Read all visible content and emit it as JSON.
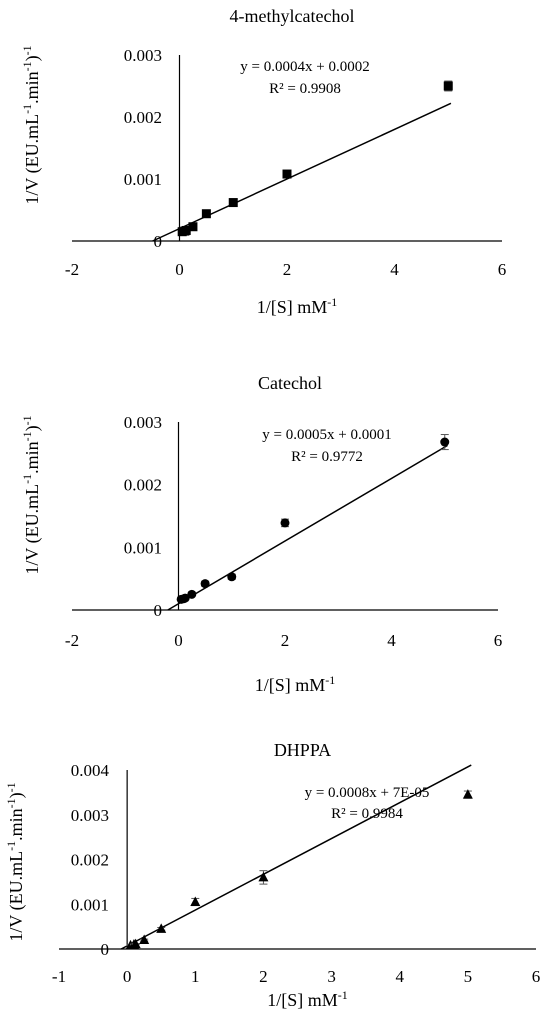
{
  "chart_data": [
    {
      "type": "scatter",
      "title": "4-methylcatechol",
      "xlabel": "1/[S] mM",
      "xlabel_sup": "-1",
      "ylabel": "1/V (EU.mL-1.min-1)-1",
      "xlim": [
        -2,
        6
      ],
      "ylim": [
        0,
        0.003
      ],
      "xticks": [
        "-2",
        "0",
        "2",
        "4",
        "6"
      ],
      "yticks": [
        "0",
        "0.001",
        "0.002",
        "0.003"
      ],
      "marker": "square",
      "trendline": {
        "slope": 0.0004,
        "intercept": 0.0002
      },
      "equation": "y = 0.0004x + 0.0002",
      "r2": "R² = 0.9908",
      "x": [
        0.05,
        0.1,
        0.125,
        0.25,
        0.5,
        1,
        2,
        5
      ],
      "y": [
        0.00015,
        0.00016,
        0.00017,
        0.00023,
        0.00044,
        0.00062,
        0.00108,
        0.0025
      ],
      "err": [
        1e-05,
        1e-05,
        1e-05,
        2e-05,
        3e-05,
        4e-05,
        3e-05,
        8e-05
      ]
    },
    {
      "type": "scatter",
      "title": "Catechol",
      "xlabel": "1/[S] mM",
      "xlabel_sup": "-1",
      "ylabel": "1/V (EU.mL-1.min-1)-1",
      "xlim": [
        -2,
        6
      ],
      "ylim": [
        0,
        0.003
      ],
      "xticks": [
        "-2",
        "0",
        "2",
        "4",
        "6"
      ],
      "yticks": [
        "0",
        "0.001",
        "0.002",
        "0.003"
      ],
      "marker": "circle",
      "trendline": {
        "slope": 0.0005,
        "intercept": 0.0001
      },
      "equation": "y = 0.0005x + 0.0001",
      "r2": "R² = 0.9772",
      "x": [
        0.05,
        0.1,
        0.125,
        0.25,
        0.5,
        1,
        2,
        5
      ],
      "y": [
        0.00017,
        0.00018,
        0.00019,
        0.00025,
        0.00042,
        0.00053,
        0.00139,
        0.00268
      ],
      "err": [
        1e-05,
        1e-05,
        1e-05,
        2e-05,
        4e-05,
        4e-05,
        6e-05,
        0.00012
      ]
    },
    {
      "type": "scatter",
      "title": "DHPPA",
      "xlabel": "1/[S] mM",
      "xlabel_sup": "-1",
      "ylabel": "1/V (EU.mL-1.min-1)-1",
      "xlim": [
        -1,
        6
      ],
      "ylim": [
        0,
        0.004
      ],
      "xticks": [
        "-1",
        "0",
        "1",
        "2",
        "3",
        "4",
        "5",
        "6"
      ],
      "yticks": [
        "0",
        "0.001",
        "0.002",
        "0.003",
        "0.004"
      ],
      "marker": "triangle",
      "trendline": {
        "slope": 0.0008,
        "intercept": 7e-05
      },
      "equation": "y = 0.0008x + 7E-05",
      "r2": "R² = 0.9984",
      "x": [
        0.05,
        0.1,
        0.125,
        0.25,
        0.5,
        1,
        2,
        5
      ],
      "y": [
        8e-05,
        0.0001,
        0.00011,
        0.0002,
        0.00045,
        0.00105,
        0.0016,
        0.00345
      ],
      "err": [
        1e-05,
        1e-05,
        1e-05,
        2e-05,
        3e-05,
        8e-05,
        0.00015,
        8e-05
      ]
    }
  ]
}
